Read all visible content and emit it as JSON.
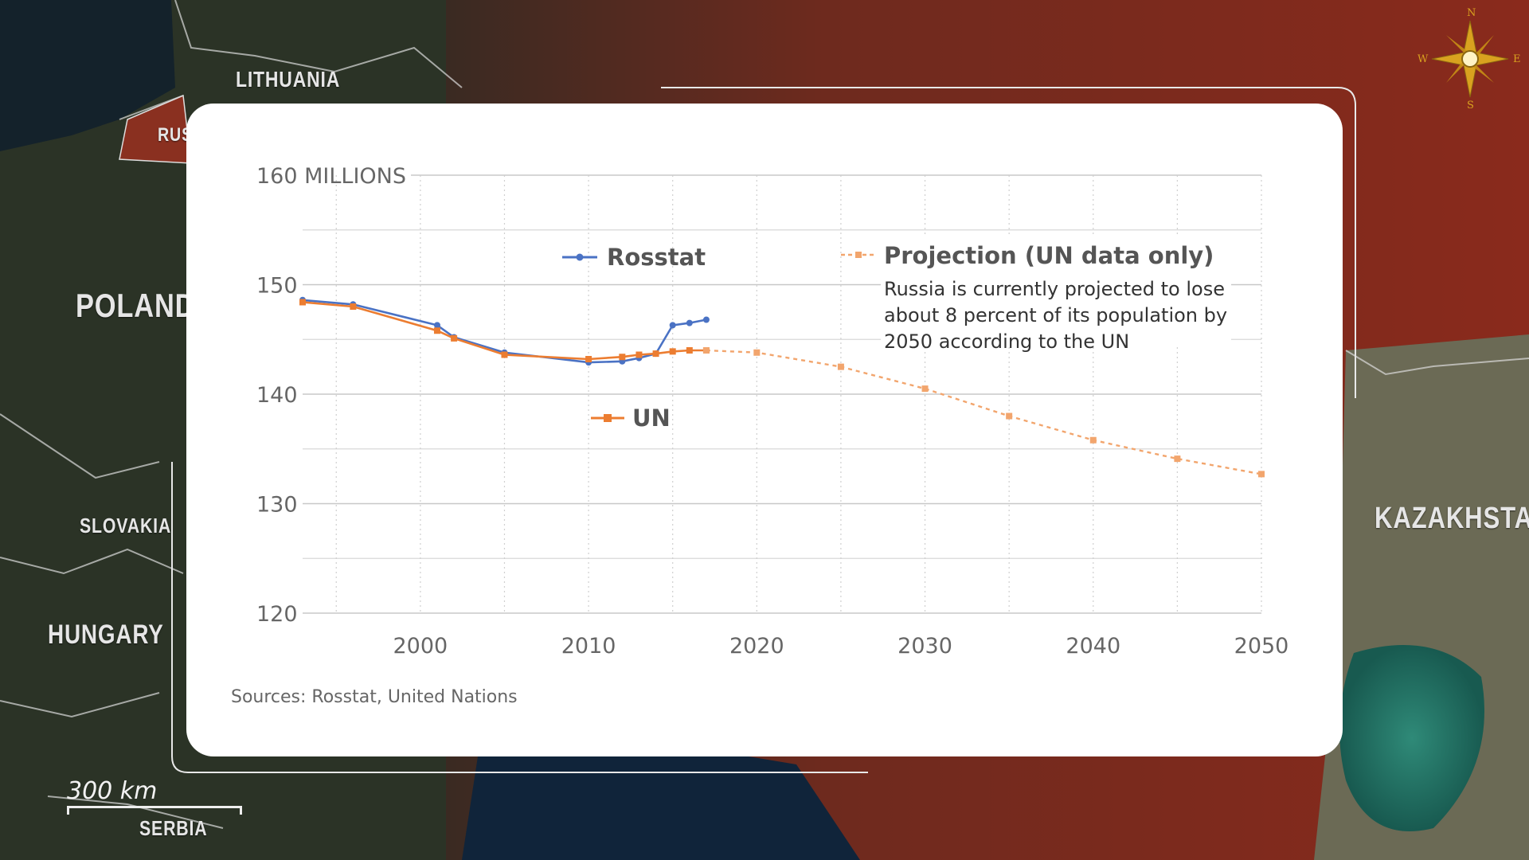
{
  "map": {
    "countries": [
      "LITHUANIA",
      "RUS",
      "POLAND",
      "SLOVAKIA",
      "HUNGARY",
      "SERBIA",
      "KAZAKHSTAN"
    ],
    "scale_label": "300 km",
    "compass": {
      "n": "N",
      "e": "E",
      "s": "S",
      "w": "W"
    }
  },
  "colors": {
    "rosstat": "#4a72c4",
    "un": "#ec7d31",
    "grid": "#cfcfcf"
  },
  "chart_data": {
    "type": "line",
    "y_top_label": "160 MILLIONS",
    "yticks": [
      "150",
      "140",
      "130",
      "120"
    ],
    "xticks": [
      "2000",
      "2010",
      "2020",
      "2030",
      "2040",
      "2050"
    ],
    "ylim": [
      120,
      160
    ],
    "xlim": [
      1993,
      2050
    ],
    "series": [
      {
        "name": "Rosstat",
        "style": "solid",
        "points": [
          [
            1993,
            148.6
          ],
          [
            1996,
            148.2
          ],
          [
            2001,
            146.3
          ],
          [
            2002,
            145.2
          ],
          [
            2005,
            143.8
          ],
          [
            2010,
            142.9
          ],
          [
            2012,
            143.0
          ],
          [
            2013,
            143.3
          ],
          [
            2014,
            143.7
          ],
          [
            2015,
            146.3
          ],
          [
            2016,
            146.5
          ],
          [
            2017,
            146.8
          ]
        ]
      },
      {
        "name": "UN",
        "style": "solid",
        "points": [
          [
            1993,
            148.4
          ],
          [
            1996,
            148.0
          ],
          [
            2001,
            145.8
          ],
          [
            2002,
            145.1
          ],
          [
            2005,
            143.6
          ],
          [
            2010,
            143.2
          ],
          [
            2012,
            143.4
          ],
          [
            2013,
            143.6
          ],
          [
            2014,
            143.7
          ],
          [
            2015,
            143.9
          ],
          [
            2016,
            144.0
          ],
          [
            2017,
            144.0
          ]
        ]
      },
      {
        "name": "Projection (UN data only)",
        "style": "dashed",
        "points": [
          [
            2017,
            144.0
          ],
          [
            2020,
            143.8
          ],
          [
            2025,
            142.5
          ],
          [
            2030,
            140.5
          ],
          [
            2035,
            138.0
          ],
          [
            2040,
            135.8
          ],
          [
            2045,
            134.1
          ],
          [
            2050,
            132.7
          ]
        ]
      }
    ],
    "legend": {
      "rosstat": "Rosstat",
      "un": "UN",
      "projection": "Projection (UN data only)"
    },
    "annotation": [
      "Russia is currently projected to lose",
      "about 8 percent of its population by",
      "2050 according to the UN"
    ],
    "source": "Sources: Rosstat, United Nations"
  }
}
